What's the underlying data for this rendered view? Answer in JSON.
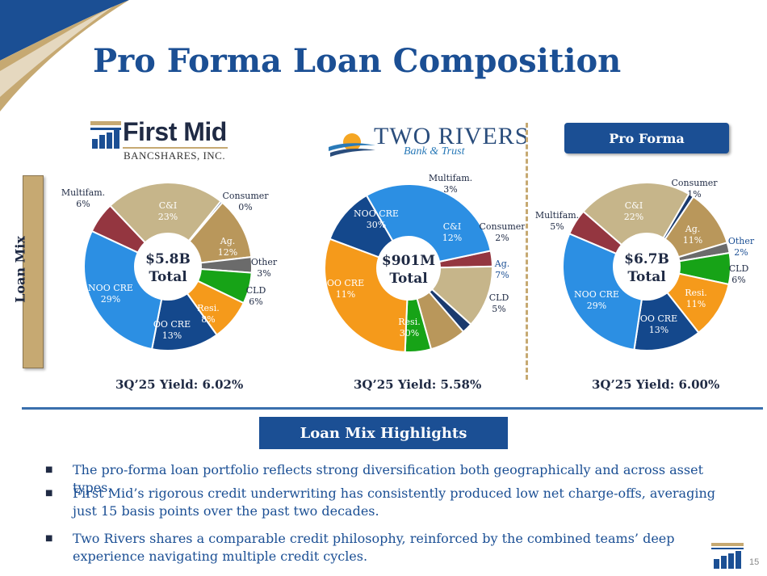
{
  "title": "Pro Forma Loan Composition",
  "logos": {
    "first_mid_name": "First Mid",
    "first_mid_sub": "BANCSHARES, INC.",
    "two_rivers_name": "TWO RIVERS",
    "two_rivers_sub": "Bank & Trust"
  },
  "pro_forma_label": "Pro Forma",
  "side_tab_label": "Loan Mix",
  "colors": {
    "title_blue": "#1b4f94",
    "gold": "#c6a972",
    "multifam": "#943640",
    "ci": "#c6b58a",
    "consumer": "#1a3a6e",
    "ag": "#b9975b",
    "other": "#6b6b6b",
    "cld": "#17a317",
    "resi": "#f59a1b",
    "oo_cre": "#14488c",
    "noo_cre": "#2c8fe3"
  },
  "chart_data": [
    {
      "type": "pie",
      "center_label": "$5.8B\nTotal",
      "center_line1": "$5.8B",
      "center_line2": "Total",
      "yield": "3Q’25 Yield: 6.02%",
      "slices": [
        {
          "name": "Multifam.",
          "pct": "6%",
          "value": 6,
          "color": "#943640"
        },
        {
          "name": "C&I",
          "pct": "23%",
          "value": 23,
          "color": "#c6b58a"
        },
        {
          "name": "Consumer",
          "pct": "0%",
          "value": 0.4,
          "color": "#1a3a6e"
        },
        {
          "name": "Ag.",
          "pct": "12%",
          "value": 12,
          "color": "#b9975b"
        },
        {
          "name": "Other",
          "pct": "3%",
          "value": 3,
          "color": "#6b6b6b"
        },
        {
          "name": "CLD",
          "pct": "6%",
          "value": 6,
          "color": "#17a317"
        },
        {
          "name": "Resi.",
          "pct": "8%",
          "value": 8,
          "color": "#f59a1b"
        },
        {
          "name": "OO CRE",
          "pct": "13%",
          "value": 13,
          "color": "#14488c"
        },
        {
          "name": "NOO CRE",
          "pct": "29%",
          "value": 29,
          "color": "#2c8fe3"
        }
      ]
    },
    {
      "type": "pie",
      "center_line1": "$901M",
      "center_line2": "Total",
      "yield": "3Q’25 Yield: 5.58%",
      "slices": [
        {
          "name": "Multifam.",
          "pct": "3%",
          "value": 3,
          "color": "#943640"
        },
        {
          "name": "C&I",
          "pct": "12%",
          "value": 12,
          "color": "#c6b58a"
        },
        {
          "name": "Consumer",
          "pct": "2%",
          "value": 2,
          "color": "#1a3a6e"
        },
        {
          "name": "Ag.",
          "pct": "7%",
          "value": 7,
          "color": "#b9975b"
        },
        {
          "name": "CLD",
          "pct": "5%",
          "value": 5,
          "color": "#17a317"
        },
        {
          "name": "Resi.",
          "pct": "30%",
          "value": 30,
          "color": "#f59a1b"
        },
        {
          "name": "OO CRE",
          "pct": "11%",
          "value": 11,
          "color": "#14488c"
        },
        {
          "name": "NOO CRE",
          "pct": "30%",
          "value": 30,
          "color": "#2c8fe3"
        }
      ]
    },
    {
      "type": "pie",
      "center_line1": "$6.7B",
      "center_line2": "Total",
      "yield": "3Q’25 Yield: 6.00%",
      "slices": [
        {
          "name": "Multifam.",
          "pct": "5%",
          "value": 5,
          "color": "#943640"
        },
        {
          "name": "C&I",
          "pct": "22%",
          "value": 22,
          "color": "#c6b58a"
        },
        {
          "name": "Consumer",
          "pct": "1%",
          "value": 1,
          "color": "#1a3a6e"
        },
        {
          "name": "Ag.",
          "pct": "11%",
          "value": 11,
          "color": "#b9975b"
        },
        {
          "name": "Other",
          "pct": "2%",
          "value": 2,
          "color": "#6b6b6b"
        },
        {
          "name": "CLD",
          "pct": "6%",
          "value": 6,
          "color": "#17a317"
        },
        {
          "name": "Resi.",
          "pct": "11%",
          "value": 11,
          "color": "#f59a1b"
        },
        {
          "name": "OO CRE",
          "pct": "13%",
          "value": 13,
          "color": "#14488c"
        },
        {
          "name": "NOO CRE",
          "pct": "29%",
          "value": 29,
          "color": "#2c8fe3"
        }
      ]
    }
  ],
  "highlights_label": "Loan Mix Highlights",
  "bullets": [
    "The pro-forma loan portfolio reflects strong diversification both geographically and across asset types.",
    "First Mid’s rigorous credit underwriting has consistently produced low net charge-offs, averaging just 15 basis points over the past two decades.",
    "Two Rivers shares a comparable credit philosophy, reinforced by the combined teams’ deep experience navigating multiple credit cycles."
  ],
  "page_number": "15"
}
